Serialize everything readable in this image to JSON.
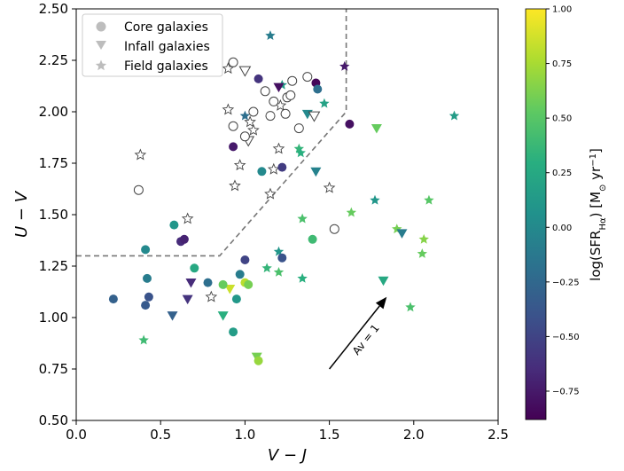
{
  "chart_data": {
    "type": "scatter",
    "title": "",
    "xlabel": "V − J",
    "ylabel": "U − V",
    "xlim": [
      0.0,
      2.5
    ],
    "ylim": [
      0.5,
      2.5
    ],
    "xticks": [
      "0.0",
      "0.5",
      "1.0",
      "1.5",
      "2.0",
      "2.5"
    ],
    "yticks": [
      "0.50",
      "0.75",
      "1.00",
      "1.25",
      "1.50",
      "1.75",
      "2.00",
      "2.25",
      "2.50"
    ],
    "xtick_values": [
      0.0,
      0.5,
      1.0,
      1.5,
      2.0,
      2.5
    ],
    "ytick_values": [
      0.5,
      0.75,
      1.0,
      1.25,
      1.5,
      1.75,
      2.0,
      2.25,
      2.5
    ],
    "legend": {
      "placement": "top-left",
      "entries": [
        {
          "label": "Core galaxies",
          "marker": "circle"
        },
        {
          "label": "Infall galaxies",
          "marker": "triangle-down"
        },
        {
          "label": "Field galaxies",
          "marker": "star"
        }
      ]
    },
    "colorbar": {
      "label": "log(SFR_Hα) [M⊙ yr⁻¹]",
      "range": [
        -0.88,
        1.0
      ],
      "colormap": "viridis",
      "ticks": [
        "1.00",
        "0.75",
        "0.50",
        "0.25",
        "0.00",
        "−0.25",
        "−0.50",
        "−0.75"
      ],
      "tick_values": [
        1.0,
        0.75,
        0.5,
        0.25,
        0.0,
        -0.25,
        -0.5,
        -0.75
      ]
    },
    "boundary_line": [
      [
        0.0,
        1.3
      ],
      [
        0.85,
        1.3
      ],
      [
        1.6,
        2.0
      ],
      [
        1.6,
        2.5
      ]
    ],
    "arrow": {
      "from": [
        1.5,
        0.75
      ],
      "to": [
        1.84,
        1.1
      ],
      "label": "Av = 1"
    },
    "core_galaxies": [
      {
        "x": 0.22,
        "y": 1.09,
        "c": -0.3
      },
      {
        "x": 0.41,
        "y": 1.33,
        "c": 0.0
      },
      {
        "x": 0.42,
        "y": 1.19,
        "c": -0.1
      },
      {
        "x": 0.41,
        "y": 1.06,
        "c": -0.35
      },
      {
        "x": 0.43,
        "y": 1.1,
        "c": -0.4
      },
      {
        "x": 0.58,
        "y": 1.45,
        "c": 0.1
      },
      {
        "x": 0.62,
        "y": 1.37,
        "c": -0.65
      },
      {
        "x": 0.64,
        "y": 1.38,
        "c": -0.7
      },
      {
        "x": 0.7,
        "y": 1.24,
        "c": 0.25
      },
      {
        "x": 0.78,
        "y": 1.17,
        "c": -0.2
      },
      {
        "x": 0.87,
        "y": 1.16,
        "c": 0.55
      },
      {
        "x": 0.93,
        "y": 0.93,
        "c": 0.15
      },
      {
        "x": 0.95,
        "y": 1.09,
        "c": 0.12
      },
      {
        "x": 0.97,
        "y": 1.21,
        "c": -0.1
      },
      {
        "x": 1.0,
        "y": 1.17,
        "c": 0.8
      },
      {
        "x": 1.02,
        "y": 1.16,
        "c": 0.6
      },
      {
        "x": 1.0,
        "y": 1.28,
        "c": -0.5
      },
      {
        "x": 1.08,
        "y": 0.79,
        "c": 0.7
      },
      {
        "x": 1.22,
        "y": 1.29,
        "c": -0.4
      },
      {
        "x": 1.4,
        "y": 1.38,
        "c": 0.4
      },
      {
        "x": 0.93,
        "y": 1.83,
        "c": -0.75
      },
      {
        "x": 1.1,
        "y": 1.71,
        "c": 0.0
      },
      {
        "x": 1.22,
        "y": 1.73,
        "c": -0.55
      },
      {
        "x": 1.08,
        "y": 2.16,
        "c": -0.6
      },
      {
        "x": 1.42,
        "y": 2.14,
        "c": -0.85
      },
      {
        "x": 1.43,
        "y": 2.11,
        "c": -0.2
      },
      {
        "x": 1.62,
        "y": 1.94,
        "c": -0.8
      },
      {
        "x": 0.37,
        "y": 1.62,
        "c": null
      },
      {
        "x": 0.93,
        "y": 1.93,
        "c": null
      },
      {
        "x": 0.93,
        "y": 2.24,
        "c": null
      },
      {
        "x": 1.0,
        "y": 1.88,
        "c": null
      },
      {
        "x": 1.05,
        "y": 2.0,
        "c": null
      },
      {
        "x": 1.12,
        "y": 2.1,
        "c": null
      },
      {
        "x": 1.15,
        "y": 1.98,
        "c": null
      },
      {
        "x": 1.17,
        "y": 2.05,
        "c": null
      },
      {
        "x": 1.24,
        "y": 1.99,
        "c": null
      },
      {
        "x": 1.25,
        "y": 2.07,
        "c": null
      },
      {
        "x": 1.27,
        "y": 2.08,
        "c": null
      },
      {
        "x": 1.28,
        "y": 2.15,
        "c": null
      },
      {
        "x": 1.32,
        "y": 1.92,
        "c": null
      },
      {
        "x": 1.37,
        "y": 2.17,
        "c": null
      },
      {
        "x": 1.53,
        "y": 1.43,
        "c": null
      }
    ],
    "infall_galaxies": [
      {
        "x": 0.57,
        "y": 1.01,
        "c": -0.3
      },
      {
        "x": 0.66,
        "y": 1.09,
        "c": -0.6
      },
      {
        "x": 0.68,
        "y": 1.17,
        "c": -0.65
      },
      {
        "x": 0.87,
        "y": 1.01,
        "c": 0.3
      },
      {
        "x": 0.91,
        "y": 1.14,
        "c": 0.85
      },
      {
        "x": 1.07,
        "y": 0.81,
        "c": 0.6
      },
      {
        "x": 1.2,
        "y": 2.12,
        "c": -0.8
      },
      {
        "x": 1.37,
        "y": 1.99,
        "c": 0.0
      },
      {
        "x": 1.42,
        "y": 1.71,
        "c": -0.05
      },
      {
        "x": 1.78,
        "y": 1.92,
        "c": 0.55
      },
      {
        "x": 1.82,
        "y": 1.18,
        "c": 0.25
      },
      {
        "x": 1.93,
        "y": 1.41,
        "c": -0.1
      },
      {
        "x": 1.0,
        "y": 2.2,
        "c": null
      },
      {
        "x": 1.02,
        "y": 1.86,
        "c": null
      },
      {
        "x": 1.41,
        "y": 1.98,
        "c": null
      }
    ],
    "field_galaxies": [
      {
        "x": 0.4,
        "y": 0.89,
        "c": 0.4
      },
      {
        "x": 1.15,
        "y": 2.37,
        "c": -0.1
      },
      {
        "x": 1.59,
        "y": 2.22,
        "c": -0.75
      },
      {
        "x": 1.0,
        "y": 1.98,
        "c": -0.2
      },
      {
        "x": 1.22,
        "y": 2.13,
        "c": 0.15
      },
      {
        "x": 1.47,
        "y": 2.04,
        "c": 0.2
      },
      {
        "x": 1.32,
        "y": 1.82,
        "c": 0.35
      },
      {
        "x": 1.33,
        "y": 1.8,
        "c": 0.3
      },
      {
        "x": 1.34,
        "y": 1.48,
        "c": 0.45
      },
      {
        "x": 1.63,
        "y": 1.51,
        "c": 0.55
      },
      {
        "x": 1.77,
        "y": 1.57,
        "c": 0.1
      },
      {
        "x": 1.9,
        "y": 1.43,
        "c": 0.6
      },
      {
        "x": 2.05,
        "y": 1.31,
        "c": 0.55
      },
      {
        "x": 2.06,
        "y": 1.38,
        "c": 0.65
      },
      {
        "x": 2.09,
        "y": 1.57,
        "c": 0.5
      },
      {
        "x": 1.2,
        "y": 1.32,
        "c": 0.1
      },
      {
        "x": 1.13,
        "y": 1.24,
        "c": 0.35
      },
      {
        "x": 1.2,
        "y": 1.22,
        "c": 0.45
      },
      {
        "x": 1.34,
        "y": 1.19,
        "c": 0.3
      },
      {
        "x": 1.98,
        "y": 1.05,
        "c": 0.45
      },
      {
        "x": 2.24,
        "y": 1.98,
        "c": 0.15
      },
      {
        "x": 0.38,
        "y": 1.79,
        "c": null
      },
      {
        "x": 0.66,
        "y": 1.48,
        "c": null
      },
      {
        "x": 0.8,
        "y": 1.1,
        "c": null
      },
      {
        "x": 0.9,
        "y": 2.21,
        "c": null
      },
      {
        "x": 0.9,
        "y": 2.01,
        "c": null
      },
      {
        "x": 0.94,
        "y": 1.64,
        "c": null
      },
      {
        "x": 0.97,
        "y": 1.74,
        "c": null
      },
      {
        "x": 1.03,
        "y": 1.95,
        "c": null
      },
      {
        "x": 1.05,
        "y": 1.91,
        "c": null
      },
      {
        "x": 1.15,
        "y": 1.6,
        "c": null
      },
      {
        "x": 1.17,
        "y": 1.72,
        "c": null
      },
      {
        "x": 1.2,
        "y": 1.82,
        "c": null
      },
      {
        "x": 1.21,
        "y": 2.03,
        "c": null
      },
      {
        "x": 1.5,
        "y": 1.63,
        "c": null
      }
    ]
  }
}
